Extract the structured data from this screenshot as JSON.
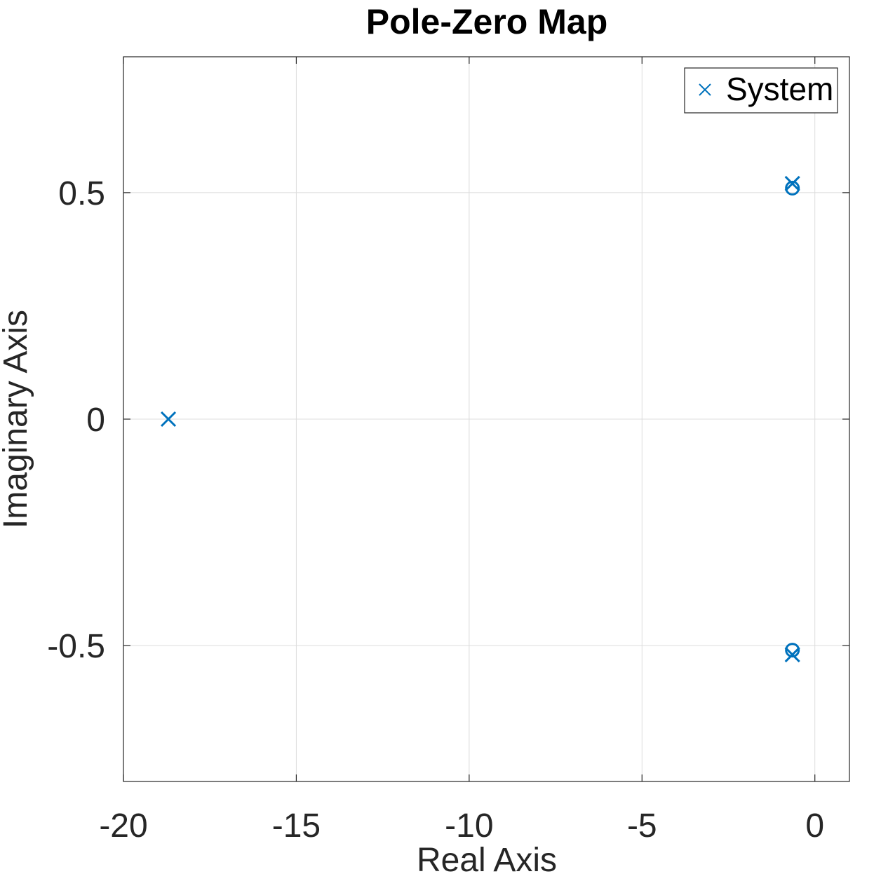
{
  "chart_data": {
    "type": "scatter",
    "title": "Pole-Zero Map",
    "xlabel": "Real Axis",
    "ylabel": "Imaginary Axis",
    "xlim": [
      -20,
      1
    ],
    "ylim": [
      -0.8,
      0.8
    ],
    "xticks": [
      -20,
      -15,
      -10,
      -5,
      0
    ],
    "xtick_labels": [
      "-20",
      "-15",
      "-10",
      "-5",
      "0"
    ],
    "yticks": [
      -0.5,
      0,
      0.5
    ],
    "ytick_labels": [
      "-0.5",
      "0",
      "0.5"
    ],
    "grid": true,
    "legend": {
      "position": "top-right",
      "entries": [
        "System"
      ]
    },
    "color": "#0072BD",
    "series": [
      {
        "name": "System",
        "poles": [
          {
            "x": -18.7,
            "y": 0
          },
          {
            "x": -0.65,
            "y": 0.52
          },
          {
            "x": -0.65,
            "y": -0.52
          }
        ],
        "zeros": [
          {
            "x": -0.65,
            "y": 0.51
          },
          {
            "x": -0.65,
            "y": -0.51
          }
        ]
      }
    ]
  }
}
